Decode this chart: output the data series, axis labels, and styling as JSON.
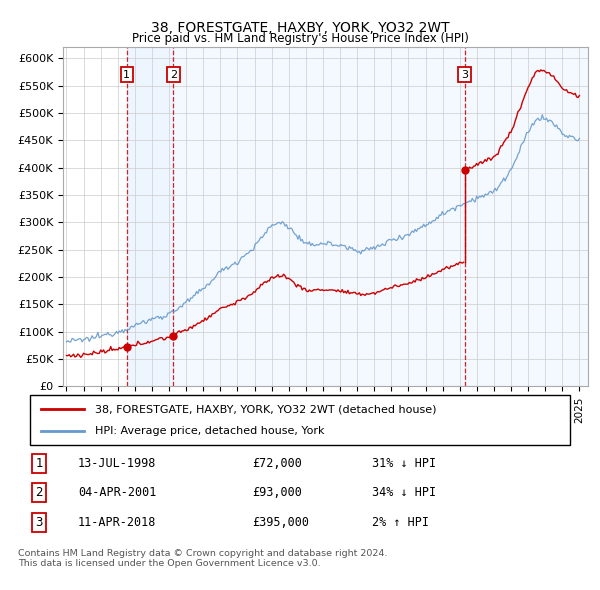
{
  "title": "38, FORESTGATE, HAXBY, YORK, YO32 2WT",
  "subtitle": "Price paid vs. HM Land Registry's House Price Index (HPI)",
  "legend_line1": "38, FORESTGATE, HAXBY, YORK, YO32 2WT (detached house)",
  "legend_line2": "HPI: Average price, detached house, York",
  "footer1": "Contains HM Land Registry data © Crown copyright and database right 2024.",
  "footer2": "This data is licensed under the Open Government Licence v3.0.",
  "transactions": [
    {
      "num": 1,
      "date": "13-JUL-1998",
      "price": 72000,
      "year": 1998.53,
      "hpi_relation": "31% ↓ HPI"
    },
    {
      "num": 2,
      "date": "04-APR-2001",
      "price": 93000,
      "year": 2001.26,
      "hpi_relation": "34% ↓ HPI"
    },
    {
      "num": 3,
      "date": "11-APR-2018",
      "price": 395000,
      "year": 2018.28,
      "hpi_relation": "2% ↑ HPI"
    }
  ],
  "property_color": "#cc0000",
  "hpi_color": "#6699cc",
  "shade_color": "#ddeeff",
  "ylim": [
    0,
    620000
  ],
  "yticks": [
    0,
    50000,
    100000,
    150000,
    200000,
    250000,
    300000,
    350000,
    400000,
    450000,
    500000,
    550000,
    600000
  ],
  "xlim_start": 1994.8,
  "xlim_end": 2025.5,
  "xticks": [
    1995,
    1996,
    1997,
    1998,
    1999,
    2000,
    2001,
    2002,
    2003,
    2004,
    2005,
    2006,
    2007,
    2008,
    2009,
    2010,
    2011,
    2012,
    2013,
    2014,
    2015,
    2016,
    2017,
    2018,
    2019,
    2020,
    2021,
    2022,
    2023,
    2024,
    2025
  ]
}
